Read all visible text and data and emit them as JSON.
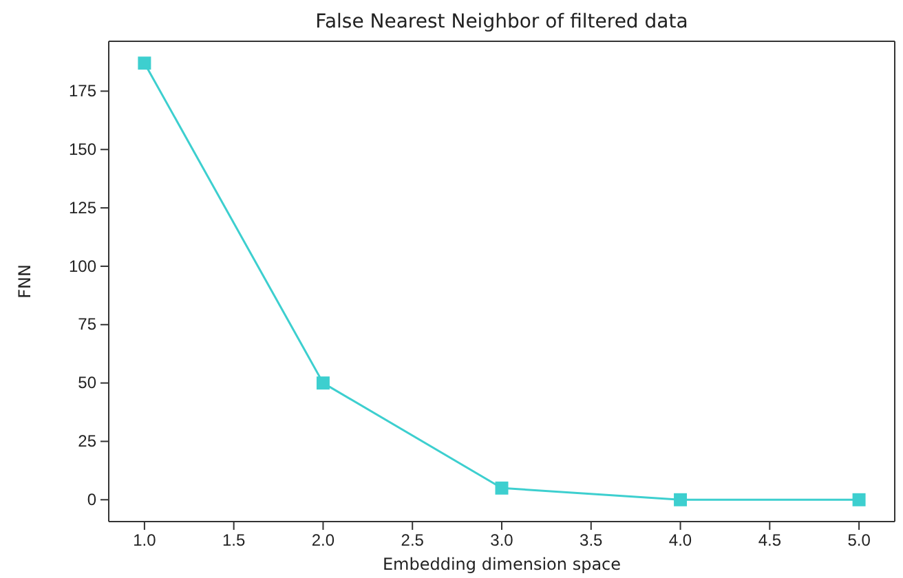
{
  "chart_data": {
    "type": "line",
    "title": "False Nearest Neighbor of filtered data",
    "xlabel": "Embedding dimension space",
    "ylabel": "FNN",
    "x": [
      1,
      2,
      3,
      4,
      5
    ],
    "series": [
      {
        "color": "#3dcfcf",
        "values": [
          187,
          50,
          5,
          0,
          0
        ]
      }
    ],
    "xlim": [
      0.8,
      5.2
    ],
    "xticks": [
      {
        "value": 1,
        "label": "1.0"
      },
      {
        "value": 1.5,
        "label": "1.5"
      },
      {
        "value": 2,
        "label": "2.0"
      },
      {
        "value": 2.5,
        "label": "2.5"
      },
      {
        "value": 3,
        "label": "3.0"
      },
      {
        "value": 3.5,
        "label": "3.5"
      },
      {
        "value": 4,
        "label": "4.0"
      },
      {
        "value": 4.5,
        "label": "4.5"
      },
      {
        "value": 5,
        "label": "5.0"
      }
    ],
    "ylim": [
      -9.35,
      196.35
    ],
    "yticks": [
      0,
      25,
      50,
      75,
      100,
      125,
      150,
      175
    ],
    "marker": "square",
    "line_style": "solid",
    "grid": false
  }
}
